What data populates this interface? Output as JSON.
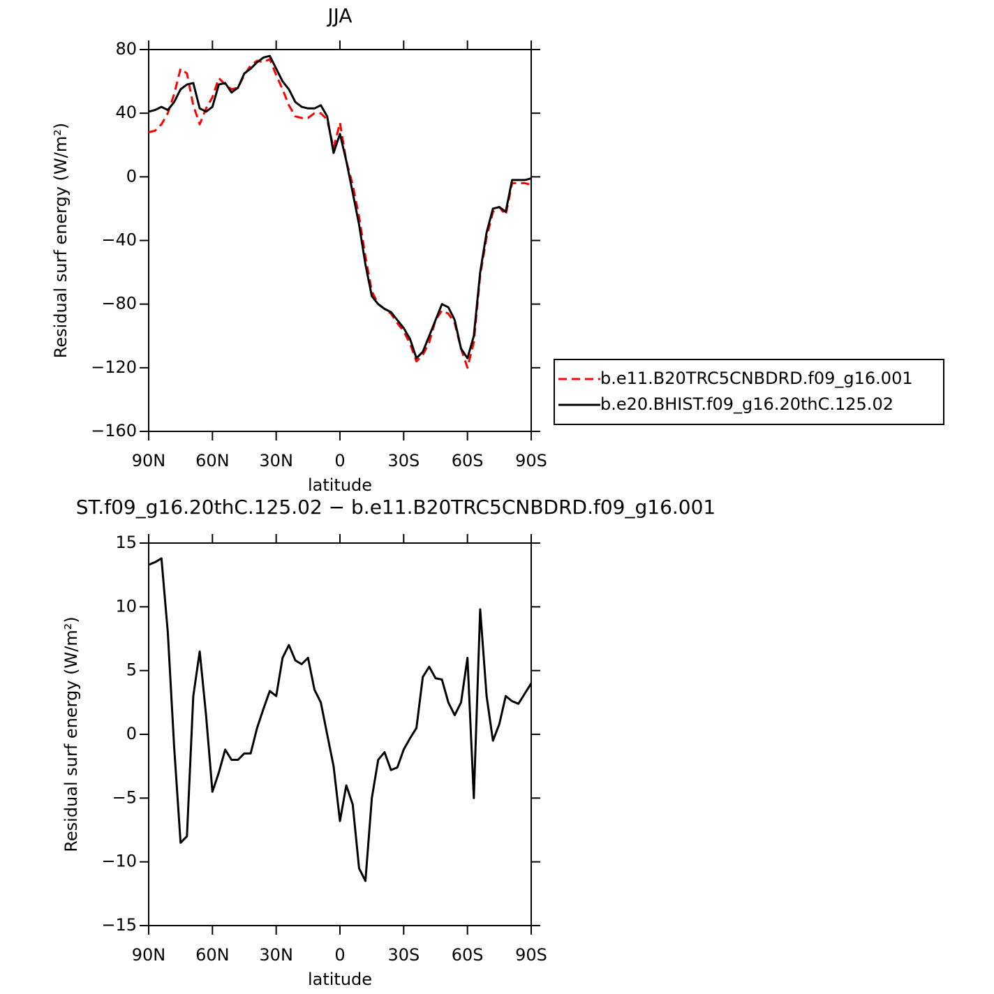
{
  "chart_data": [
    {
      "type": "line",
      "title": "JJA",
      "xlabel": "latitude",
      "ylabel": "Residual surf energy (W/m²)",
      "x": [
        90,
        87,
        84,
        81,
        78,
        75,
        72,
        69,
        66,
        63,
        60,
        57,
        54,
        51,
        48,
        45,
        42,
        39,
        36,
        33,
        30,
        27,
        24,
        21,
        18,
        15,
        12,
        9,
        6,
        3,
        0,
        -3,
        -6,
        -9,
        -12,
        -15,
        -18,
        -21,
        -24,
        -27,
        -30,
        -33,
        -36,
        -39,
        -42,
        -45,
        -48,
        -51,
        -54,
        -57,
        -60,
        -63,
        -66,
        -69,
        -72,
        -75,
        -78,
        -81,
        -84,
        -87,
        -90
      ],
      "series": [
        {
          "name": "b.e11.B20TRC5CNBDRD.f09_g16.001",
          "color": "#ff0000",
          "dash": "dashed",
          "values": [
            28,
            29,
            33,
            40,
            52,
            68,
            65,
            45,
            33,
            43,
            50,
            62,
            58,
            55,
            56,
            64,
            70,
            73,
            72,
            74,
            64,
            55,
            45,
            38,
            37,
            37,
            40,
            40,
            36,
            18,
            34,
            10,
            -5,
            -25,
            -50,
            -72,
            -80,
            -83,
            -86,
            -92,
            -97,
            -105,
            -116,
            -112,
            -104,
            -90,
            -84,
            -86,
            -92,
            -108,
            -120,
            -104,
            -62,
            -38,
            -22,
            -19,
            -24,
            -4,
            -4,
            -4,
            -5
          ]
        },
        {
          "name": "b.e20.BHIST.f09_g16.20thC.125.02",
          "color": "#000000",
          "dash": "solid",
          "values": [
            41,
            42,
            44,
            42,
            47,
            55,
            58,
            59,
            43,
            41,
            44,
            58,
            59,
            53,
            56,
            65,
            68,
            72,
            75,
            76,
            68,
            60,
            55,
            47,
            44,
            43,
            43,
            45,
            38,
            15,
            27,
            10,
            -10,
            -30,
            -55,
            -75,
            -80,
            -83,
            -85,
            -90,
            -95,
            -102,
            -114,
            -110,
            -100,
            -90,
            -80,
            -82,
            -90,
            -108,
            -114,
            -100,
            -60,
            -35,
            -20,
            -19,
            -22,
            -2,
            -2,
            -2,
            -1
          ]
        }
      ],
      "xlim": [
        90,
        -90
      ],
      "xticks": [
        {
          "value": 90,
          "label": "90N"
        },
        {
          "value": 60,
          "label": "60N"
        },
        {
          "value": 30,
          "label": "30N"
        },
        0,
        {
          "value": -30,
          "label": "30S"
        },
        {
          "value": -60,
          "label": "60S"
        },
        {
          "value": -90,
          "label": "90S"
        }
      ],
      "ylim": [
        -160,
        80
      ],
      "yticks": [
        {
          "value": -160,
          "label": "−160"
        },
        {
          "value": -120,
          "label": "−120"
        },
        {
          "value": -80,
          "label": "−80"
        },
        {
          "value": -40,
          "label": "−40"
        },
        0,
        40,
        80
      ],
      "legend": "outside-right"
    },
    {
      "type": "line",
      "title": "ST.f09_g16.20thC.125.02 − b.e11.B20TRC5CNBDRD.f09_g16.001",
      "xlabel": "latitude",
      "ylabel": "Residual surf energy (W/m²)",
      "x": [
        90,
        87,
        84,
        81,
        78,
        75,
        72,
        69,
        66,
        63,
        60,
        57,
        54,
        51,
        48,
        45,
        42,
        39,
        36,
        33,
        30,
        27,
        24,
        21,
        18,
        15,
        12,
        9,
        6,
        3,
        0,
        -3,
        -6,
        -9,
        -12,
        -15,
        -18,
        -21,
        -24,
        -27,
        -30,
        -33,
        -36,
        -39,
        -42,
        -45,
        -48,
        -51,
        -54,
        -57,
        -60,
        -63,
        -66,
        -69,
        -72,
        -75,
        -78,
        -81,
        -84,
        -87,
        -90
      ],
      "values": [
        13.3,
        13.5,
        13.8,
        8,
        -1,
        -8.5,
        -8,
        3,
        6.5,
        1.5,
        -4.5,
        -3,
        -1.2,
        -2,
        -2,
        -1.5,
        -1.5,
        0.5,
        2,
        3.4,
        3,
        6,
        7,
        5.8,
        5.5,
        6,
        3.5,
        2.5,
        0,
        -2.5,
        -6.8,
        -4,
        -5.5,
        -10.5,
        -11.5,
        -5,
        -2,
        -1.4,
        -2.8,
        -2.6,
        -1.2,
        -0.3,
        0.5,
        4.5,
        5.3,
        4.4,
        4.3,
        2.5,
        1.5,
        2.5,
        6,
        -5,
        9.8,
        3,
        -0.5,
        0.8,
        3,
        2.6,
        2.4,
        3.2,
        4
      ],
      "color": "#000000",
      "xlim": [
        90,
        -90
      ],
      "xticks": [
        {
          "value": 90,
          "label": "90N"
        },
        {
          "value": 60,
          "label": "60N"
        },
        {
          "value": 30,
          "label": "30N"
        },
        0,
        {
          "value": -30,
          "label": "30S"
        },
        {
          "value": -60,
          "label": "60S"
        },
        {
          "value": -90,
          "label": "90S"
        }
      ],
      "ylim": [
        -15,
        15
      ],
      "yticks": [
        {
          "value": -15,
          "label": "−15"
        },
        {
          "value": -10,
          "label": "−10"
        },
        {
          "value": -5,
          "label": "−5"
        },
        0,
        5,
        10,
        15
      ]
    }
  ]
}
